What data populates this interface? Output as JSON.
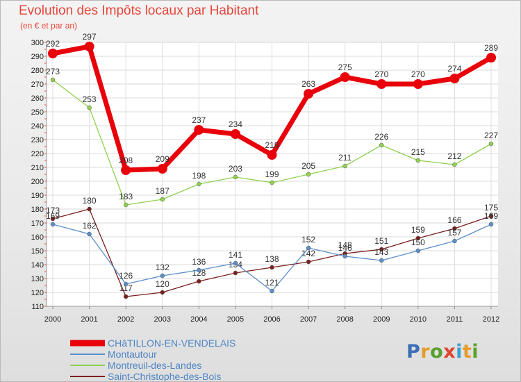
{
  "title": "Evolution des Impôts locaux par Habitant",
  "subtitle": "(en € et par an)",
  "brand": "Proxiti",
  "chart_data": {
    "type": "line",
    "title": "Evolution des Impôts locaux par Habitant",
    "subtitle": "(en € et par an)",
    "categories": [
      "2000",
      "2001",
      "2002",
      "2003",
      "2004",
      "2005",
      "2006",
      "2007",
      "2008",
      "2009",
      "2010",
      "2011",
      "2012"
    ],
    "ylim": [
      110,
      300
    ],
    "yticks": [
      110,
      120,
      130,
      140,
      150,
      160,
      170,
      180,
      190,
      200,
      210,
      220,
      230,
      240,
      250,
      260,
      270,
      280,
      290,
      300
    ],
    "grid": true,
    "legend_position": "bottom-left",
    "series": [
      {
        "name": "CHâTILLON-EN-VENDELAIS",
        "color": "#e8000b",
        "values": [
          292,
          297,
          208,
          209,
          237,
          234,
          219,
          263,
          275,
          270,
          270,
          274,
          289
        ],
        "labels": [
          "292",
          "297",
          "208",
          "209",
          "237",
          "234",
          "219",
          "263",
          "275",
          "270",
          "270",
          "274",
          "289"
        ]
      },
      {
        "name": "Montautour",
        "color": "#5b8fc9",
        "values": [
          169,
          162,
          126,
          132,
          136,
          141,
          121,
          152,
          146,
          143,
          150,
          157,
          169
        ],
        "labels": [
          "169",
          "162",
          "126",
          "132",
          "136",
          "141",
          "121",
          "152",
          "146",
          "143",
          "150",
          "157",
          "169"
        ]
      },
      {
        "name": "Montreuil-des-Landes",
        "color": "#8fd14f",
        "values": [
          273,
          253,
          183,
          187,
          198,
          203,
          199,
          205,
          211,
          226,
          215,
          212,
          227
        ],
        "labels": [
          "273",
          "253",
          "183",
          "187",
          "198",
          "203",
          "199",
          "205",
          "211",
          "226",
          "215",
          "212",
          "227"
        ]
      },
      {
        "name": "Saint-Christophe-des-Bois",
        "color": "#7a1f1f",
        "values": [
          173,
          180,
          117,
          120,
          128,
          134,
          138,
          142,
          148,
          151,
          159,
          166,
          175
        ],
        "labels": [
          "173",
          "180",
          "117",
          "120",
          "128",
          "134",
          "138",
          "142",
          "148",
          "151",
          "159",
          "166",
          "175"
        ]
      }
    ]
  }
}
